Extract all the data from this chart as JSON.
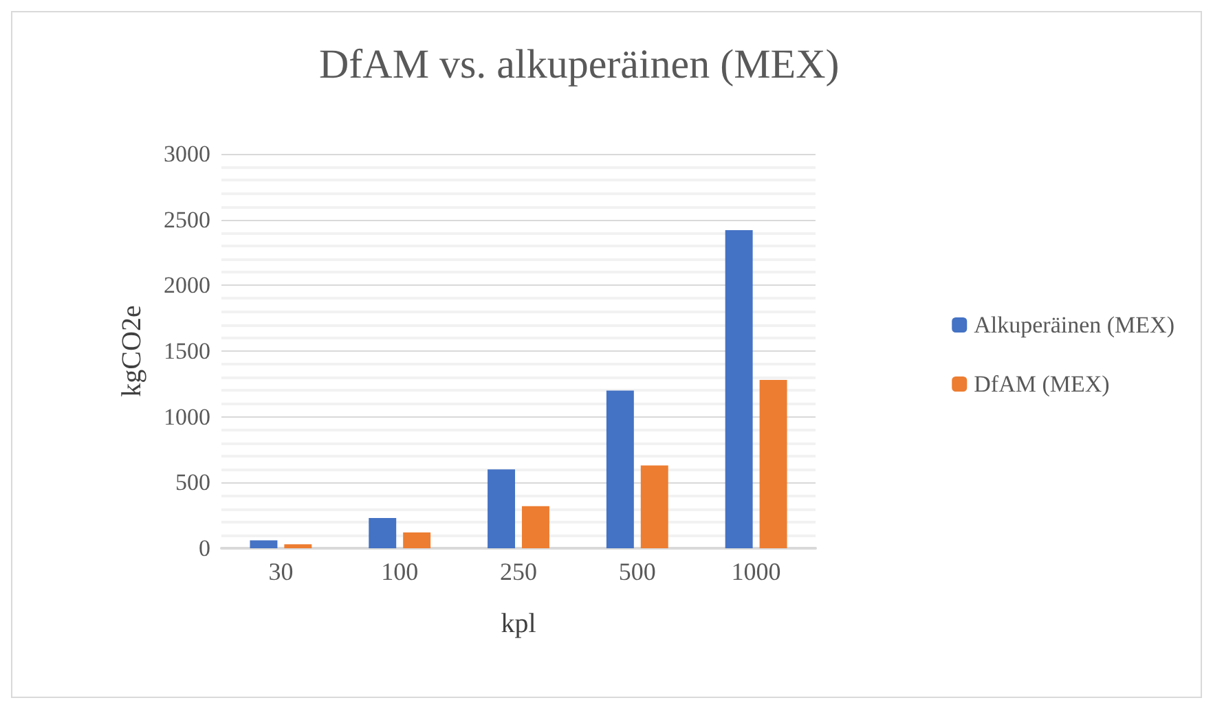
{
  "chart_data": {
    "type": "bar",
    "title": "DfAM vs. alkuperäinen (MEX)",
    "xlabel": "kpl",
    "ylabel": "kgCO2e",
    "categories": [
      "30",
      "100",
      "250",
      "500",
      "1000"
    ],
    "series": [
      {
        "name": "Alkuperäinen (MEX)",
        "color": "#4472c4",
        "values": [
          60,
          230,
          600,
          1200,
          2420
        ]
      },
      {
        "name": "DfAM (MEX)",
        "color": "#ed7d31",
        "values": [
          30,
          120,
          320,
          630,
          1280
        ]
      }
    ],
    "ylim": [
      0,
      3000
    ],
    "yticks": [
      0,
      500,
      1000,
      1500,
      2000,
      2500,
      3000
    ],
    "grid": "y",
    "legend": "right"
  }
}
